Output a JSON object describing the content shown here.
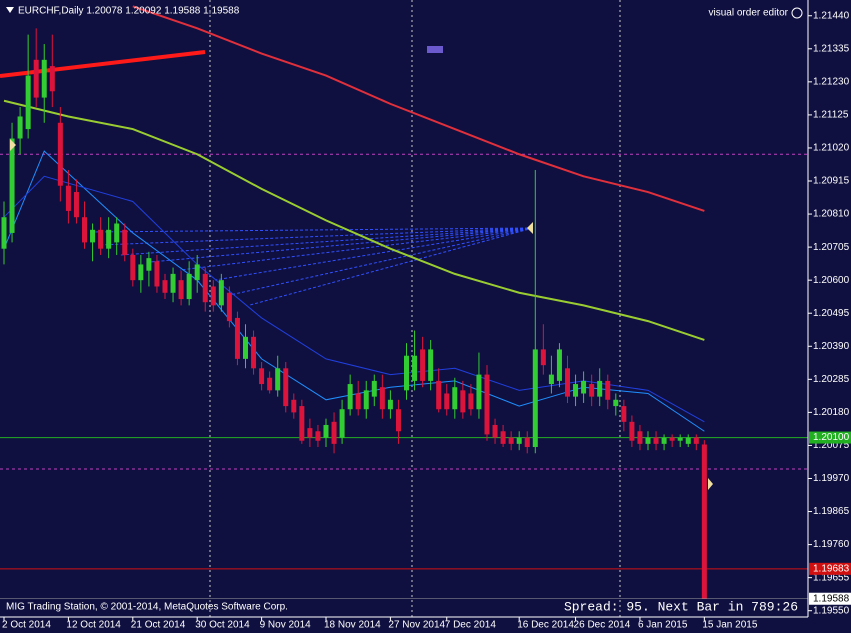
{
  "chart_data": {
    "type": "candlestick",
    "title": "EURCHF,Daily  1.20078 1.20092 1.19588 1.19588",
    "corner_label": "visual order editor",
    "footer_left": "MIG Trading Station, © 2001-2014, MetaQuotes Software Corp.",
    "footer_right": "Spread: 95. Next Bar in 789:26",
    "up_color": "#32cd32",
    "down_color": "#dc143c",
    "categories": [
      "2 Oct 2014",
      null,
      null,
      null,
      null,
      null,
      null,
      null,
      "12 Oct 2014",
      null,
      null,
      null,
      null,
      null,
      null,
      null,
      "21 Oct 2014",
      null,
      null,
      null,
      null,
      null,
      null,
      null,
      "30 Oct 2014",
      null,
      null,
      null,
      null,
      null,
      null,
      null,
      "9 Nov 2014",
      null,
      null,
      null,
      null,
      null,
      null,
      null,
      "18 Nov 2014",
      null,
      null,
      null,
      null,
      null,
      null,
      null,
      "27 Nov 2014",
      null,
      null,
      null,
      null,
      null,
      null,
      "7 Dec 2014",
      null,
      null,
      null,
      null,
      null,
      null,
      null,
      null,
      "16 Dec 2014",
      null,
      null,
      null,
      null,
      null,
      null,
      "26 Dec 2014",
      null,
      null,
      null,
      null,
      null,
      null,
      null,
      "6 Jan 2015",
      null,
      null,
      null,
      null,
      null,
      null,
      null,
      "15 Jan 2015"
    ],
    "open": [
      1.207,
      1.2075,
      1.2105,
      1.2108,
      1.213,
      1.2118,
      1.2128,
      1.211,
      1.209,
      1.2088,
      1.208,
      1.2072,
      1.2076,
      1.207,
      1.2072,
      1.2076,
      1.2068,
      1.206,
      1.2063,
      1.2066,
      1.206,
      1.2056,
      1.206,
      1.2054,
      1.206,
      1.2062,
      1.2058,
      1.2052,
      1.2056,
      1.2048,
      1.2035,
      1.2042,
      1.2032,
      1.2029,
      1.2025,
      1.2032,
      1.2022,
      1.202,
      1.2013,
      1.2012,
      1.201,
      1.2015,
      1.201,
      1.2019,
      1.2024,
      1.2019,
      1.2023,
      1.2026,
      1.2019,
      1.2019,
      1.2025,
      1.2028,
      1.2038,
      1.2028,
      1.2028,
      1.2024,
      1.2019,
      1.2025,
      1.2024,
      1.2019,
      1.203,
      1.2014,
      1.2012,
      1.201,
      1.2008,
      1.201,
      1.2007,
      1.2038,
      1.2027,
      1.2028,
      1.2032,
      1.2023,
      1.2024,
      1.2027,
      1.2023,
      1.2028,
      1.202,
      1.202,
      1.2015,
      1.2012,
      1.2008,
      1.201,
      1.2008,
      1.201,
      1.2009,
      1.2008,
      1.201,
      1.20078
    ],
    "high": [
      1.2085,
      1.211,
      1.2115,
      1.2138,
      1.214,
      1.2135,
      1.2138,
      1.2115,
      1.2095,
      1.2092,
      1.2085,
      1.2078,
      1.208,
      1.208,
      1.208,
      1.2078,
      1.207,
      1.2068,
      1.2069,
      1.2068,
      1.2062,
      1.2064,
      1.2063,
      1.2066,
      1.2068,
      1.2064,
      1.206,
      1.2062,
      1.2058,
      1.205,
      1.2046,
      1.2044,
      1.2034,
      1.2031,
      1.2036,
      1.2034,
      1.2024,
      1.2022,
      1.2016,
      1.2014,
      1.2016,
      1.2018,
      1.2022,
      1.203,
      1.2028,
      1.2028,
      1.203,
      1.203,
      1.2025,
      1.2022,
      1.204,
      1.2044,
      1.2042,
      1.2041,
      1.2032,
      1.2027,
      1.2029,
      1.2028,
      1.2027,
      1.2037,
      1.2033,
      1.2016,
      1.2014,
      1.2012,
      1.2012,
      1.2012,
      1.2095,
      1.2046,
      1.2036,
      1.204,
      1.2036,
      1.203,
      1.2031,
      1.203,
      1.2032,
      1.203,
      1.2024,
      1.2022,
      1.2017,
      1.2014,
      1.2012,
      1.2012,
      1.2011,
      1.2011,
      1.2011,
      1.2011,
      1.2011,
      1.20092
    ],
    "low": [
      1.2065,
      1.2072,
      1.21,
      1.2105,
      1.2115,
      1.211,
      1.2115,
      1.2085,
      1.2078,
      1.2078,
      1.207,
      1.2066,
      1.2068,
      1.2067,
      1.2068,
      1.2066,
      1.2058,
      1.2056,
      1.2058,
      1.2056,
      1.2054,
      1.2053,
      1.2052,
      1.2052,
      1.2056,
      1.205,
      1.205,
      1.205,
      1.2045,
      1.2033,
      1.2032,
      1.203,
      1.2025,
      1.2024,
      1.2023,
      1.2018,
      1.2016,
      1.2008,
      1.2007,
      1.2007,
      1.2007,
      1.2005,
      1.2008,
      1.2017,
      1.2017,
      1.2016,
      1.202,
      1.2016,
      1.2016,
      1.2008,
      1.2022,
      1.2025,
      1.2026,
      1.2025,
      1.2018,
      1.2017,
      1.2016,
      1.2016,
      1.2017,
      1.2016,
      1.2009,
      1.2008,
      1.2007,
      1.2006,
      1.2006,
      1.2005,
      1.2005,
      1.203,
      1.2024,
      1.2026,
      1.2021,
      1.202,
      1.2021,
      1.202,
      1.202,
      1.2019,
      1.2017,
      1.2012,
      1.2007,
      1.2006,
      1.2006,
      1.2006,
      1.2006,
      1.2007,
      1.2007,
      1.2007,
      1.2006,
      1.19588
    ],
    "close": [
      1.208,
      1.2105,
      1.2112,
      1.2125,
      1.2118,
      1.213,
      1.212,
      1.209,
      1.2082,
      1.208,
      1.2072,
      1.2076,
      1.207,
      1.2076,
      1.2078,
      1.2068,
      1.206,
      1.2065,
      1.2067,
      1.2058,
      1.2056,
      1.2062,
      1.2054,
      1.2062,
      1.2065,
      1.2053,
      1.2052,
      1.206,
      1.2047,
      1.2035,
      1.2042,
      1.2032,
      1.2027,
      1.2025,
      1.2032,
      1.202,
      1.2018,
      1.2009,
      1.201,
      1.2009,
      1.2014,
      1.2008,
      1.2019,
      1.2027,
      1.2019,
      1.2025,
      1.2028,
      1.2019,
      1.2022,
      1.2012,
      1.2036,
      1.2036,
      1.2028,
      1.2038,
      1.2019,
      1.2019,
      1.2026,
      1.2018,
      1.2019,
      1.203,
      1.2011,
      1.201,
      1.2008,
      1.2008,
      1.201,
      1.2007,
      1.2038,
      1.2033,
      1.203,
      1.2038,
      1.2023,
      1.2027,
      1.2028,
      1.2023,
      1.2028,
      1.2022,
      1.2022,
      1.2015,
      1.2009,
      1.2008,
      1.201,
      1.2008,
      1.201,
      1.2009,
      1.201,
      1.201,
      1.2008,
      1.19588
    ],
    "overlays": [
      {
        "color": "#e0303c",
        "x": [
          16,
          24,
          32,
          40,
          48,
          56,
          64,
          72,
          80,
          87
        ],
        "values": [
          1.2147,
          1.214,
          1.2132,
          1.2125,
          1.2116,
          1.2108,
          1.21,
          1.2093,
          1.2088,
          1.2082
        ]
      },
      {
        "color": "#9acd32",
        "x": [
          0,
          8,
          16,
          24,
          32,
          40,
          48,
          56,
          64,
          72,
          80,
          87
        ],
        "values": [
          1.2117,
          1.2112,
          1.2108,
          1.21,
          1.2089,
          1.2079,
          1.207,
          1.2062,
          1.2056,
          1.2052,
          1.2047,
          1.2041
        ]
      },
      {
        "color": "#1e90ff",
        "x": [
          0,
          5,
          16,
          24,
          32,
          40,
          48,
          56,
          64,
          72,
          80,
          87
        ],
        "values": [
          1.207,
          1.2101,
          1.2075,
          1.206,
          1.2035,
          1.2022,
          1.2026,
          1.2028,
          1.202,
          1.2026,
          1.2024,
          1.2012
        ]
      },
      {
        "color": "#2040e0",
        "x": [
          0,
          5,
          16,
          24,
          32,
          40,
          48,
          56,
          64,
          72,
          80,
          87
        ],
        "values": [
          1.208,
          1.2093,
          1.2085,
          1.2065,
          1.2048,
          1.2035,
          1.203,
          1.2032,
          1.2025,
          1.2028,
          1.2025,
          1.2015
        ]
      }
    ],
    "levels": [
      {
        "value": 1.21,
        "color": "#c040c0",
        "style": "dashed"
      },
      {
        "value": 1.2,
        "color": "#c040c0",
        "style": "dashed"
      },
      {
        "value": 1.201,
        "label": "1.20100",
        "color": "#22b022",
        "style": "solid"
      },
      {
        "value": 1.19683,
        "label": "1.19683",
        "color": "#d01010",
        "style": "solid"
      }
    ],
    "bid": {
      "value": 1.19588,
      "label": "1.19588"
    },
    "ylim": [
      1.1953,
      1.2149
    ],
    "yticks": [
      {
        "value": 1.2144,
        "label": "1.21440"
      },
      {
        "value": 1.21335,
        "label": "1.21335"
      },
      {
        "value": 1.2123,
        "label": "1.21230"
      },
      {
        "value": 1.21125,
        "label": "1.21125"
      },
      {
        "value": 1.2102,
        "label": "1.21020"
      },
      {
        "value": 1.20915,
        "label": "1.20915"
      },
      {
        "value": 1.2081,
        "label": "1.20810"
      },
      {
        "value": 1.20705,
        "label": "1.20705"
      },
      {
        "value": 1.206,
        "label": "1.20600"
      },
      {
        "value": 1.20495,
        "label": "1.20495"
      },
      {
        "value": 1.2039,
        "label": "1.20390"
      },
      {
        "value": 1.20285,
        "label": "1.20285"
      },
      {
        "value": 1.2018,
        "label": "1.20180"
      },
      {
        "value": 1.20075,
        "label": "1.20075"
      },
      {
        "value": 1.1997,
        "label": "1.19970"
      },
      {
        "value": 1.19865,
        "label": "1.19865"
      },
      {
        "value": 1.1976,
        "label": "1.19760"
      },
      {
        "value": 1.19655,
        "label": "1.19655"
      },
      {
        "value": 1.1955,
        "label": "1.19550"
      }
    ]
  }
}
